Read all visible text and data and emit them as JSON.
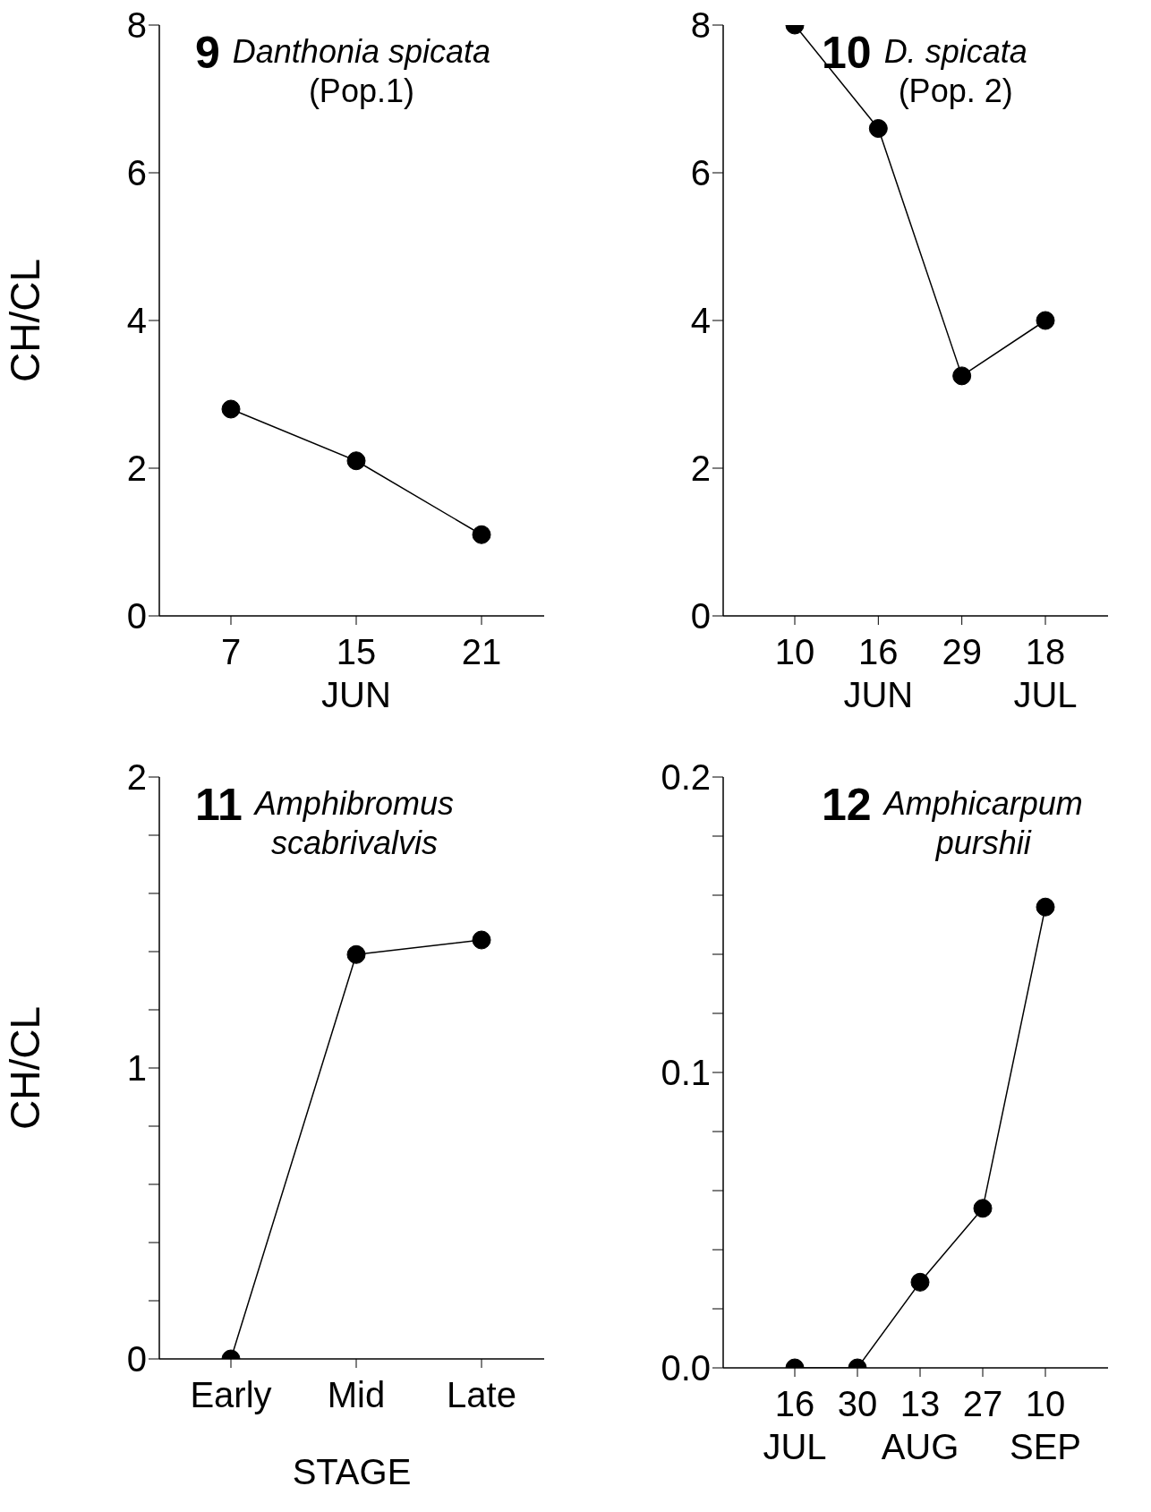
{
  "chart_data": [
    {
      "type": "line",
      "title": "9",
      "subtitle": "Danthonia spicata",
      "ylabel": "CH/CL",
      "categories": [
        "7",
        "15\nJUN",
        "21"
      ],
      "values": [
        2.8,
        2.1,
        1.1
      ],
      "color": "#000000",
      "marker": "circle",
      "ylim": [
        0,
        8
      ],
      "yticks": [
        0,
        2,
        4,
        6,
        8
      ],
      "annotations": [
        "(Pop.1)"
      ]
    },
    {
      "type": "line",
      "title": "10",
      "subtitle": "D. spicata",
      "categories": [
        "10",
        "16\nJUN",
        "29",
        "18\nJUL"
      ],
      "values": [
        8.0,
        6.6,
        3.25,
        4.0
      ],
      "color": "#000000",
      "marker": "circle",
      "ylim": [
        0,
        8
      ],
      "yticks": [
        0,
        2,
        4,
        6,
        8
      ],
      "annotations": [
        "(Pop. 2)"
      ]
    },
    {
      "type": "line",
      "title": "11",
      "subtitle": "Amphibromus\nscabrivalvis",
      "ylabel": "CH/CL",
      "xlabel": "STAGE",
      "categories": [
        "Early",
        "Mid",
        "Late"
      ],
      "values": [
        0,
        1.39,
        1.44
      ],
      "color": "#000000",
      "marker": "circle",
      "ylim": [
        0,
        2
      ],
      "yticks": [
        0,
        {
          "value": 0.2,
          "label": null
        },
        {
          "value": 0.4,
          "label": null
        },
        {
          "value": 0.6,
          "label": null
        },
        {
          "value": 0.8,
          "label": null
        },
        1,
        {
          "value": 1.2,
          "label": null
        },
        {
          "value": 1.4,
          "label": null
        },
        {
          "value": 1.6,
          "label": null
        },
        {
          "value": 1.8,
          "label": null
        },
        2
      ]
    },
    {
      "type": "line",
      "title": "12",
      "subtitle": "Amphicarpum\npurshii",
      "categories": [
        "16\nJUL",
        "30",
        "13\nAUG",
        "27",
        "10\nSEP"
      ],
      "values": [
        0,
        0,
        0.029,
        0.054,
        0.156
      ],
      "color": "#000000",
      "marker": "circle",
      "ylim": [
        0,
        0.2
      ],
      "yticks": [
        {
          "value": 0,
          "label": "0.0"
        },
        {
          "value": 0.02,
          "label": null
        },
        {
          "value": 0.04,
          "label": null
        },
        {
          "value": 0.06,
          "label": null
        },
        {
          "value": 0.08,
          "label": null
        },
        0.1,
        {
          "value": 0.12,
          "label": null
        },
        {
          "value": 0.14,
          "label": null
        },
        {
          "value": 0.16,
          "label": null
        },
        {
          "value": 0.18,
          "label": null
        },
        0.2
      ]
    }
  ]
}
